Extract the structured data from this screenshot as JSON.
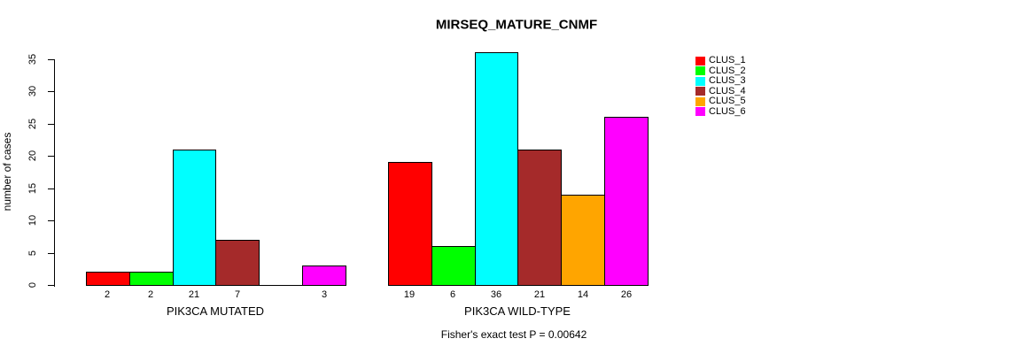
{
  "figure": {
    "title": "MIRSEQ_MATURE_CNMF",
    "footnote": "Fisher's exact test P = 0.00642"
  },
  "legend": {
    "items": [
      {
        "label": "CLUS_1",
        "color": "#FF0000"
      },
      {
        "label": "CLUS_2",
        "color": "#00FF00"
      },
      {
        "label": "CLUS_3",
        "color": "#00FFFF"
      },
      {
        "label": "CLUS_4",
        "color": "#A52A2A"
      },
      {
        "label": "CLUS_5",
        "color": "#FFA500"
      },
      {
        "label": "CLUS_6",
        "color": "#FF00FF"
      }
    ]
  },
  "chart_data": {
    "type": "bar",
    "title": "MIRSEQ_MATURE_CNMF",
    "xlabel": "",
    "ylabel": "number of cases",
    "ylim": [
      0,
      36
    ],
    "yticks": [
      0,
      5,
      10,
      15,
      20,
      25,
      30,
      35
    ],
    "grid": false,
    "legend_position": "top-right",
    "categories": [
      "PIK3CA MUTATED",
      "PIK3CA WILD-TYPE"
    ],
    "series": [
      {
        "name": "CLUS_1",
        "color": "#FF0000",
        "values": [
          2,
          19
        ]
      },
      {
        "name": "CLUS_2",
        "color": "#00FF00",
        "values": [
          2,
          6
        ]
      },
      {
        "name": "CLUS_3",
        "color": "#00FFFF",
        "values": [
          21,
          36
        ]
      },
      {
        "name": "CLUS_4",
        "color": "#A52A2A",
        "values": [
          7,
          21
        ]
      },
      {
        "name": "CLUS_5",
        "color": "#FFA500",
        "values": [
          0,
          14
        ]
      },
      {
        "name": "CLUS_6",
        "color": "#FF00FF",
        "values": [
          3,
          26
        ]
      }
    ],
    "groups": [
      {
        "label": "PIK3CA MUTATED",
        "values": [
          2,
          2,
          21,
          7,
          0,
          3
        ],
        "value_labels": [
          "2",
          "2",
          "21",
          "7",
          "",
          "3"
        ]
      },
      {
        "label": "PIK3CA WILD-TYPE",
        "values": [
          19,
          6,
          36,
          21,
          14,
          26
        ],
        "value_labels": [
          "19",
          "6",
          "36",
          "21",
          "14",
          "26"
        ]
      }
    ],
    "annotation": "Fisher's exact test P = 0.00642"
  }
}
